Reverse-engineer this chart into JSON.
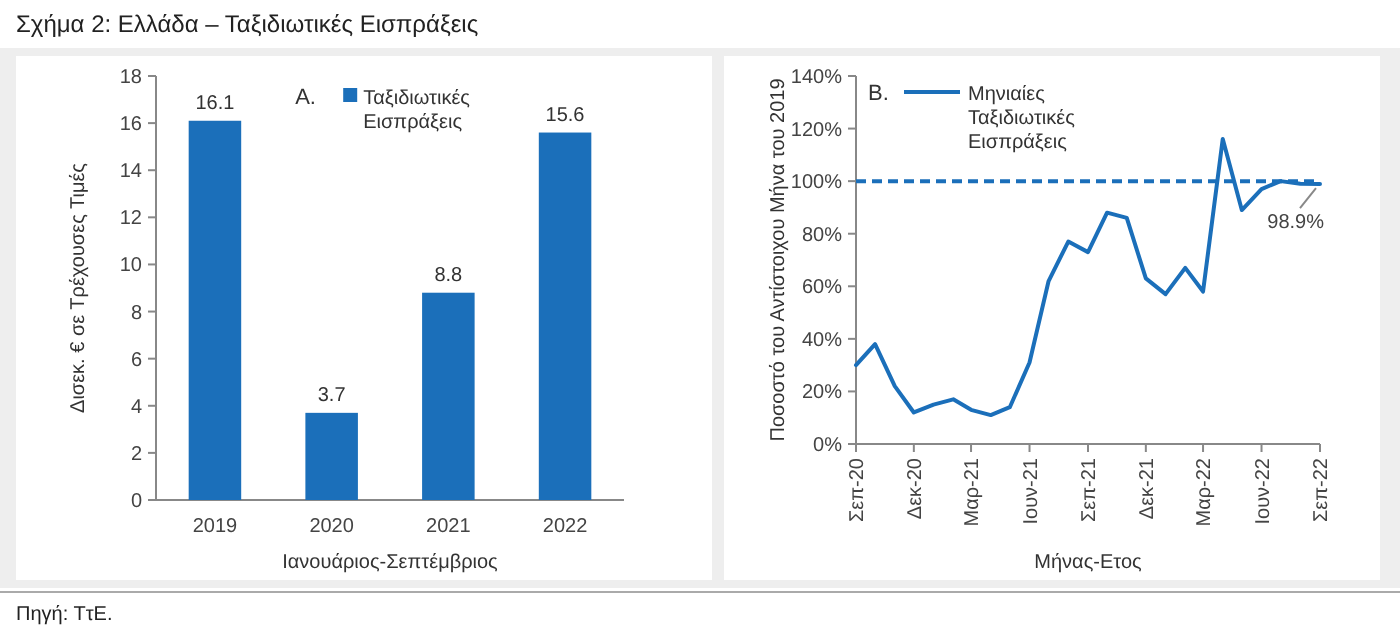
{
  "chart_data": [
    {
      "type": "bar",
      "title": "Σχήμα 2: Ελλάδα – Ταξιδιωτικές Εισπράξεις",
      "xlabel": "Ιανουάριος-Σεπτέμβριος",
      "ylabel": "Δισεκ. € σε Τρέχουσες Τιμές",
      "categories": [
        "2019",
        "2020",
        "2021",
        "2022"
      ],
      "series": [
        {
          "name": "Ταξιδιωτικές Εισπράξεις",
          "color": "#1b6fba",
          "values": [
            16.1,
            3.7,
            8.8,
            15.6
          ]
        }
      ],
      "ylim": [
        0,
        18
      ],
      "yticks": [
        0,
        2,
        4,
        6,
        8,
        10,
        12,
        14,
        16,
        18
      ],
      "data_labels": true,
      "legend": "top",
      "grid": false,
      "annotations": [
        "A.",
        "Πηγή: ΤτΕ."
      ]
    },
    {
      "type": "line",
      "xlabel": "Μήνας-Ετος",
      "ylabel": "Ποσοστό του Αντίστοιχου Μήνα του 2019",
      "x": [
        "2020-09",
        "2020-10",
        "2020-11",
        "2020-12",
        "2021-01",
        "2021-02",
        "2021-03",
        "2021-04",
        "2021-05",
        "2021-06",
        "2021-07",
        "2021-08",
        "2021-09",
        "2021-10",
        "2021-11",
        "2021-12",
        "2022-01",
        "2022-02",
        "2022-03",
        "2022-04",
        "2022-05",
        "2022-06",
        "2022-07",
        "2022-08",
        "2022-09"
      ],
      "series": [
        {
          "name": "Μηνιαίες Ταξιδιωτικές Εισπράξεις",
          "color": "#1b6fba",
          "values": [
            30,
            38,
            22,
            12,
            15,
            17,
            13,
            11,
            14,
            31,
            62,
            77,
            73,
            88,
            86,
            63,
            57,
            67,
            58,
            116,
            89,
            97,
            100,
            99,
            98.9
          ]
        }
      ],
      "xlim": [
        "2020-09",
        "2022-09"
      ],
      "xticks": [
        {
          "value": "2020-09",
          "label": "Σεπ-20"
        },
        {
          "value": "2020-12",
          "label": "Δεκ-20"
        },
        {
          "value": "2021-03",
          "label": "Μαρ-21"
        },
        {
          "value": "2021-06",
          "label": "Ιουν-21"
        },
        {
          "value": "2021-09",
          "label": "Σεπ-21"
        },
        {
          "value": "2021-12",
          "label": "Δεκ-21"
        },
        {
          "value": "2022-03",
          "label": "Μαρ-22"
        },
        {
          "value": "2022-06",
          "label": "Ιουν-22"
        },
        {
          "value": "2022-09",
          "label": "Σεπ-22"
        }
      ],
      "ylim": [
        0,
        140
      ],
      "yticks": [
        {
          "value": 0,
          "label": "0%"
        },
        {
          "value": 20,
          "label": "20%"
        },
        {
          "value": 40,
          "label": "40%"
        },
        {
          "value": 60,
          "label": "60%"
        },
        {
          "value": 80,
          "label": "80%"
        },
        {
          "value": 100,
          "label": "100%"
        },
        {
          "value": 120,
          "label": "120%"
        },
        {
          "value": 140,
          "label": "140%"
        }
      ],
      "ref_lines": [
        {
          "axis": "y",
          "value": 100,
          "color": "#1b6fba",
          "line_style": "dashed"
        }
      ],
      "line_style": "solid",
      "legend": "top left",
      "grid": false,
      "annotations": [
        "B.",
        {
          "text": "98.9%",
          "x": "2022-09",
          "y": 98.9
        }
      ]
    }
  ]
}
